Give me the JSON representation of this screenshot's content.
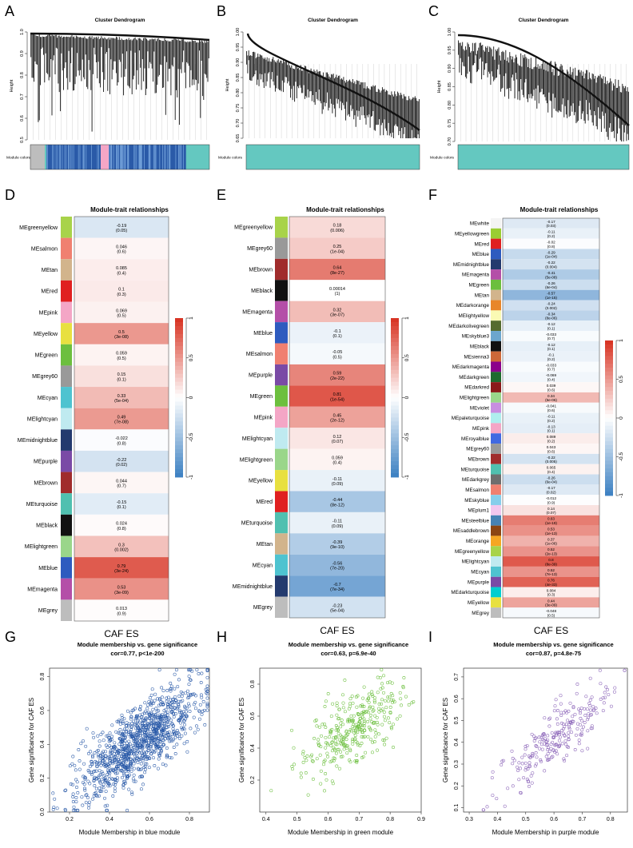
{
  "colors": {
    "red": "#d7301f",
    "blue": "#3a7fc1",
    "turquoise": "#64c8c0",
    "navy": "#2a5aa8",
    "scatter_blue": "#2a5aa8",
    "scatter_green": "#6cbf3e",
    "scatter_purple": "#8a63b8"
  },
  "dendrograms": [
    {
      "panel": "A",
      "title": "Cluster Dendrogram",
      "ylabel": "Height",
      "yticks": [
        "1.0",
        "0.9",
        "0.8",
        "0.7",
        "0.6",
        "0.5"
      ],
      "module_label": "Module colors"
    },
    {
      "panel": "B",
      "title": "Cluster Dendrogram",
      "ylabel": "Height",
      "yticks": [
        "1.00",
        "0.95",
        "0.90",
        "0.85",
        "0.80",
        "0.75",
        "0.70",
        "0.65"
      ],
      "module_label": "Module colors"
    },
    {
      "panel": "C",
      "title": "Cluster Dendrogram",
      "ylabel": "Height",
      "yticks": [
        "1.00",
        "0.95",
        "0.90",
        "0.85",
        "0.80",
        "0.75",
        "0.70"
      ],
      "module_label": "Module colors"
    }
  ],
  "chart_data": [
    {
      "type": "heatmap",
      "panel": "D",
      "title": "Module-trait relationships",
      "xlabel": "CAF ES",
      "colorbar_ticks": [
        "1",
        "0.5",
        "0",
        "-0.5",
        "-1"
      ],
      "rows": [
        {
          "name": "MEgreenyellow",
          "color": "#a8d34a",
          "cor": "-0.19",
          "p": "(0.05)"
        },
        {
          "name": "MEsalmon",
          "color": "#f08070",
          "cor": "0.046",
          "p": "(0.6)"
        },
        {
          "name": "MEtan",
          "color": "#d2b48c",
          "cor": "0.085",
          "p": "(0.4)"
        },
        {
          "name": "MEred",
          "color": "#e02020",
          "cor": "0.1",
          "p": "(0.3)"
        },
        {
          "name": "MEpink",
          "color": "#f4a6c6",
          "cor": "0.069",
          "p": "(0.5)"
        },
        {
          "name": "MEyellow",
          "color": "#e8e040",
          "cor": "0.5",
          "p": "(3e-08)"
        },
        {
          "name": "MEgreen",
          "color": "#6cbf3e",
          "cor": "0.059",
          "p": "(0.5)"
        },
        {
          "name": "MEgrey60",
          "color": "#999999",
          "cor": "0.15",
          "p": "(0.1)"
        },
        {
          "name": "MEcyan",
          "color": "#4ec3d0",
          "cor": "0.33",
          "p": "(5e-04)"
        },
        {
          "name": "MElightcyan",
          "color": "#bfeaf0",
          "cor": "0.49",
          "p": "(7e-08)"
        },
        {
          "name": "MEmidnightblue",
          "color": "#233a6e",
          "cor": "-0.022",
          "p": "(0.8)"
        },
        {
          "name": "MEpurple",
          "color": "#7a4aa6",
          "cor": "-0.22",
          "p": "(0.02)"
        },
        {
          "name": "MEbrown",
          "color": "#a02c2c",
          "cor": "0.044",
          "p": "(0.7)"
        },
        {
          "name": "MEturquoise",
          "color": "#50c0b0",
          "cor": "-0.15",
          "p": "(0.1)"
        },
        {
          "name": "MEblack",
          "color": "#111111",
          "cor": "0.024",
          "p": "(0.8)"
        },
        {
          "name": "MElightgreen",
          "color": "#9ad68a",
          "cor": "0.3",
          "p": "(0.002)"
        },
        {
          "name": "MEblue",
          "color": "#2e5bbf",
          "cor": "0.79",
          "p": "(3e-24)"
        },
        {
          "name": "MEmagenta",
          "color": "#b44fa8",
          "cor": "0.53",
          "p": "(3e-09)"
        },
        {
          "name": "MEgrey",
          "color": "#bdbdbd",
          "cor": "0.013",
          "p": "(0.9)"
        }
      ]
    },
    {
      "type": "heatmap",
      "panel": "E",
      "title": "Module-trait relationships",
      "xlabel": "CAF ES",
      "colorbar_ticks": [
        "1",
        "0.5",
        "0",
        "-0.5",
        "-1"
      ],
      "rows": [
        {
          "name": "MEgreenyellow",
          "color": "#a8d34a",
          "cor": "0.18",
          "p": "(0.006)"
        },
        {
          "name": "MEgrey60",
          "color": "#999999",
          "cor": "0.25",
          "p": "(1e-04)"
        },
        {
          "name": "MEbrown",
          "color": "#a02c2c",
          "cor": "0.64",
          "p": "(8e-27)"
        },
        {
          "name": "MEblack",
          "color": "#111111",
          "cor": "0.00014",
          "p": "(1)"
        },
        {
          "name": "MEmagenta",
          "color": "#b44fa8",
          "cor": "0.32",
          "p": "(3e-07)"
        },
        {
          "name": "MEblue",
          "color": "#2e5bbf",
          "cor": "-0.1",
          "p": "(0.1)"
        },
        {
          "name": "MEsalmon",
          "color": "#f08070",
          "cor": "-0.05",
          "p": "(0.5)"
        },
        {
          "name": "MEpurple",
          "color": "#7a4aa6",
          "cor": "0.59",
          "p": "(2e-22)"
        },
        {
          "name": "MEgreen",
          "color": "#6cbf3e",
          "cor": "0.81",
          "p": "(1e-54)"
        },
        {
          "name": "MEpink",
          "color": "#f4a6c6",
          "cor": "0.45",
          "p": "(2e-12)"
        },
        {
          "name": "MElightcyan",
          "color": "#bfeaf0",
          "cor": "0.12",
          "p": "(0.07)"
        },
        {
          "name": "MElightgreen",
          "color": "#9ad68a",
          "cor": "0.059",
          "p": "(0.4)"
        },
        {
          "name": "MEyellow",
          "color": "#e8e040",
          "cor": "-0.11",
          "p": "(0.09)"
        },
        {
          "name": "MEred",
          "color": "#e02020",
          "cor": "-0.44",
          "p": "(8e-12)"
        },
        {
          "name": "MEturquoise",
          "color": "#50c0b0",
          "cor": "-0.11",
          "p": "(0.09)"
        },
        {
          "name": "MEtan",
          "color": "#d2b48c",
          "cor": "-0.39",
          "p": "(9e-10)"
        },
        {
          "name": "MEcyan",
          "color": "#4ec3d0",
          "cor": "-0.56",
          "p": "(7e-20)"
        },
        {
          "name": "MEmidnightblue",
          "color": "#233a6e",
          "cor": "-0.7",
          "p": "(7e-34)"
        },
        {
          "name": "MEgrey",
          "color": "#bdbdbd",
          "cor": "-0.23",
          "p": "(5e-04)"
        }
      ]
    },
    {
      "type": "heatmap",
      "panel": "F",
      "title": "Module-trait relationships",
      "xlabel": "CAF ES",
      "colorbar_ticks": [
        "1",
        "0.5",
        "0",
        "-0.5",
        "-1"
      ],
      "rows": [
        {
          "name": "MEwhite",
          "color": "#f4f4f4",
          "cor": "-0.17",
          "p": "(0.03)"
        },
        {
          "name": "MEyellowgreen",
          "color": "#9acd32",
          "cor": "-0.11",
          "p": "(0.2)"
        },
        {
          "name": "MEred",
          "color": "#e02020",
          "cor": "-0.02",
          "p": "(0.8)"
        },
        {
          "name": "MEblue",
          "color": "#2e5bbf",
          "cor": "-0.29",
          "p": "(1e-04)"
        },
        {
          "name": "MEmidnightblue",
          "color": "#233a6e",
          "cor": "-0.22",
          "p": "(0.004)"
        },
        {
          "name": "MEmagenta",
          "color": "#b44fa8",
          "cor": "-0.41",
          "p": "(5e-08)"
        },
        {
          "name": "MEgreen",
          "color": "#6cbf3e",
          "cor": "-0.26",
          "p": "(6e-04)"
        },
        {
          "name": "MEtan",
          "color": "#d2b48c",
          "cor": "-0.57",
          "p": "(1e-15)"
        },
        {
          "name": "MEdarkorange",
          "color": "#e8862a",
          "cor": "-0.24",
          "p": "(0.002)"
        },
        {
          "name": "MElightyellow",
          "color": "#fafab4",
          "cor": "-0.34",
          "p": "(8e-06)"
        },
        {
          "name": "MEdarkolivegreen",
          "color": "#556b2f",
          "cor": "-0.12",
          "p": "(0.1)"
        },
        {
          "name": "MEskyblue3",
          "color": "#6ca6cd",
          "cor": "-0.033",
          "p": "(0.7)"
        },
        {
          "name": "MEblack",
          "color": "#111111",
          "cor": "-0.12",
          "p": "(0.1)"
        },
        {
          "name": "MEsienna3",
          "color": "#cd6839",
          "cor": "-0.1",
          "p": "(0.2)"
        },
        {
          "name": "MEdarkmagenta",
          "color": "#8b008b",
          "cor": "-0.033",
          "p": "(0.7)"
        },
        {
          "name": "MEdarkgreen",
          "color": "#1f6b2e",
          "cor": "-0.069",
          "p": "(0.4)"
        },
        {
          "name": "MEdarkred",
          "color": "#8b1a1a",
          "cor": "0.039",
          "p": "(0.6)"
        },
        {
          "name": "MElightgreen",
          "color": "#9ad68a",
          "cor": "0.34",
          "p": "(5e-06)"
        },
        {
          "name": "MEviolet",
          "color": "#c88ee0",
          "cor": "-0.041",
          "p": "(0.6)"
        },
        {
          "name": "MEpaleturquoise",
          "color": "#afeeee",
          "cor": "-0.11",
          "p": "(0.2)"
        },
        {
          "name": "MEpink",
          "color": "#f4a6c6",
          "cor": "-0.13",
          "p": "(0.1)"
        },
        {
          "name": "MEroyalblue",
          "color": "#4169e1",
          "cor": "0.089",
          "p": "(0.2)"
        },
        {
          "name": "MEgrey60",
          "color": "#999999",
          "cor": "0.043",
          "p": "(0.6)"
        },
        {
          "name": "MEbrown",
          "color": "#a02c2c",
          "cor": "-0.22",
          "p": "(0.005)"
        },
        {
          "name": "MEturquoise",
          "color": "#50c0b0",
          "cor": "0.065",
          "p": "(0.4)"
        },
        {
          "name": "MEdarkgrey",
          "color": "#6e6e6e",
          "cor": "-0.26",
          "p": "(6e-04)"
        },
        {
          "name": "MEsalmon",
          "color": "#f08070",
          "cor": "-0.17",
          "p": "(0.02)"
        },
        {
          "name": "MEskyblue",
          "color": "#87ceeb",
          "cor": "-0.012",
          "p": "(0.9)"
        },
        {
          "name": "MEplum1",
          "color": "#f3c7ee",
          "cor": "0.14",
          "p": "(0.07)"
        },
        {
          "name": "MEsteelblue",
          "color": "#4682b4",
          "cor": "0.63",
          "p": "(1e-19)"
        },
        {
          "name": "MEsaddlebrown",
          "color": "#8b4513",
          "cor": "0.53",
          "p": "(1e-13)"
        },
        {
          "name": "MEorange",
          "color": "#f5a623",
          "cor": "0.37",
          "p": "(1e-06)"
        },
        {
          "name": "MEgreenyellow",
          "color": "#a8d34a",
          "cor": "0.52",
          "p": "(2e-13)"
        },
        {
          "name": "MElightcyan",
          "color": "#bfeaf0",
          "cor": "0.8",
          "p": "(8e-39)"
        },
        {
          "name": "MEcyan",
          "color": "#4ec3d0",
          "cor": "0.52",
          "p": "(7e-13)"
        },
        {
          "name": "MEpurple",
          "color": "#7a4aa6",
          "cor": "0.76",
          "p": "(4e-33)"
        },
        {
          "name": "MEdarkturquoise",
          "color": "#00ced1",
          "cor": "0.084",
          "p": "(0.3)"
        },
        {
          "name": "MEyellow",
          "color": "#e8e040",
          "cor": "0.44",
          "p": "(3e-09)"
        },
        {
          "name": "MEgrey",
          "color": "#bdbdbd",
          "cor": "-0.048",
          "p": "(0.5)"
        }
      ]
    },
    {
      "type": "scatter",
      "panel": "G",
      "title": "Module membership vs. gene significance",
      "subtitle": "cor=0.77, p<1e-200",
      "xlabel": "Module Membership in blue module",
      "ylabel": "Gene significance for CAF ES",
      "xlim": [
        0.1,
        0.9
      ],
      "ylim": [
        0.0,
        0.85
      ],
      "xticks": [
        0.2,
        0.4,
        0.6,
        0.8
      ],
      "yticks": [
        0.0,
        0.2,
        0.4,
        0.6,
        0.8
      ],
      "xtick_labels": [
        "0.2",
        "0.4",
        "0.6",
        "0.8"
      ],
      "ytick_labels": [
        "0.0",
        "0.2",
        "0.4",
        "0.6",
        "0.8"
      ],
      "color": "#2a5aa8",
      "n_points": 1100,
      "cor": 0.77,
      "x_mean": 0.55,
      "x_sd": 0.15,
      "y_mean": 0.42,
      "y_sd": 0.17
    },
    {
      "type": "scatter",
      "panel": "H",
      "title": "Module membership vs. gene significance",
      "subtitle": "cor=0.63, p=6.9e-40",
      "xlabel": "Module Membership in green module",
      "ylabel": "Gene significance for CAF ES",
      "xlim": [
        0.38,
        0.9
      ],
      "ylim": [
        0.0,
        0.9
      ],
      "xticks": [
        0.4,
        0.5,
        0.6,
        0.7,
        0.8,
        0.9
      ],
      "yticks": [
        0.2,
        0.4,
        0.6,
        0.8
      ],
      "xtick_labels": [
        "0.4",
        "0.5",
        "0.6",
        "0.7",
        "0.8",
        "0.9"
      ],
      "ytick_labels": [
        "0.2",
        "0.4",
        "0.6",
        "0.8"
      ],
      "color": "#6cbf3e",
      "n_points": 340,
      "cor": 0.63,
      "x_mean": 0.68,
      "x_sd": 0.08,
      "y_mean": 0.52,
      "y_sd": 0.15
    },
    {
      "type": "scatter",
      "panel": "I",
      "title": "Module membership vs. gene significance",
      "subtitle": "cor=0.87, p=4.8e-75",
      "xlabel": "Module Membership in purple module",
      "ylabel": "Gene significance for CAF ES",
      "xlim": [
        0.28,
        0.86
      ],
      "ylim": [
        0.08,
        0.74
      ],
      "xticks": [
        0.3,
        0.4,
        0.5,
        0.6,
        0.7,
        0.8
      ],
      "yticks": [
        0.1,
        0.2,
        0.3,
        0.4,
        0.5,
        0.6,
        0.7
      ],
      "xtick_labels": [
        "0.3",
        "0.4",
        "0.5",
        "0.6",
        "0.7",
        "0.8"
      ],
      "ytick_labels": [
        "0.1",
        "0.2",
        "0.3",
        "0.4",
        "0.5",
        "0.6",
        "0.7"
      ],
      "color": "#8a63b8",
      "n_points": 240,
      "cor": 0.87,
      "x_mean": 0.6,
      "x_sd": 0.1,
      "y_mean": 0.42,
      "y_sd": 0.13
    }
  ]
}
